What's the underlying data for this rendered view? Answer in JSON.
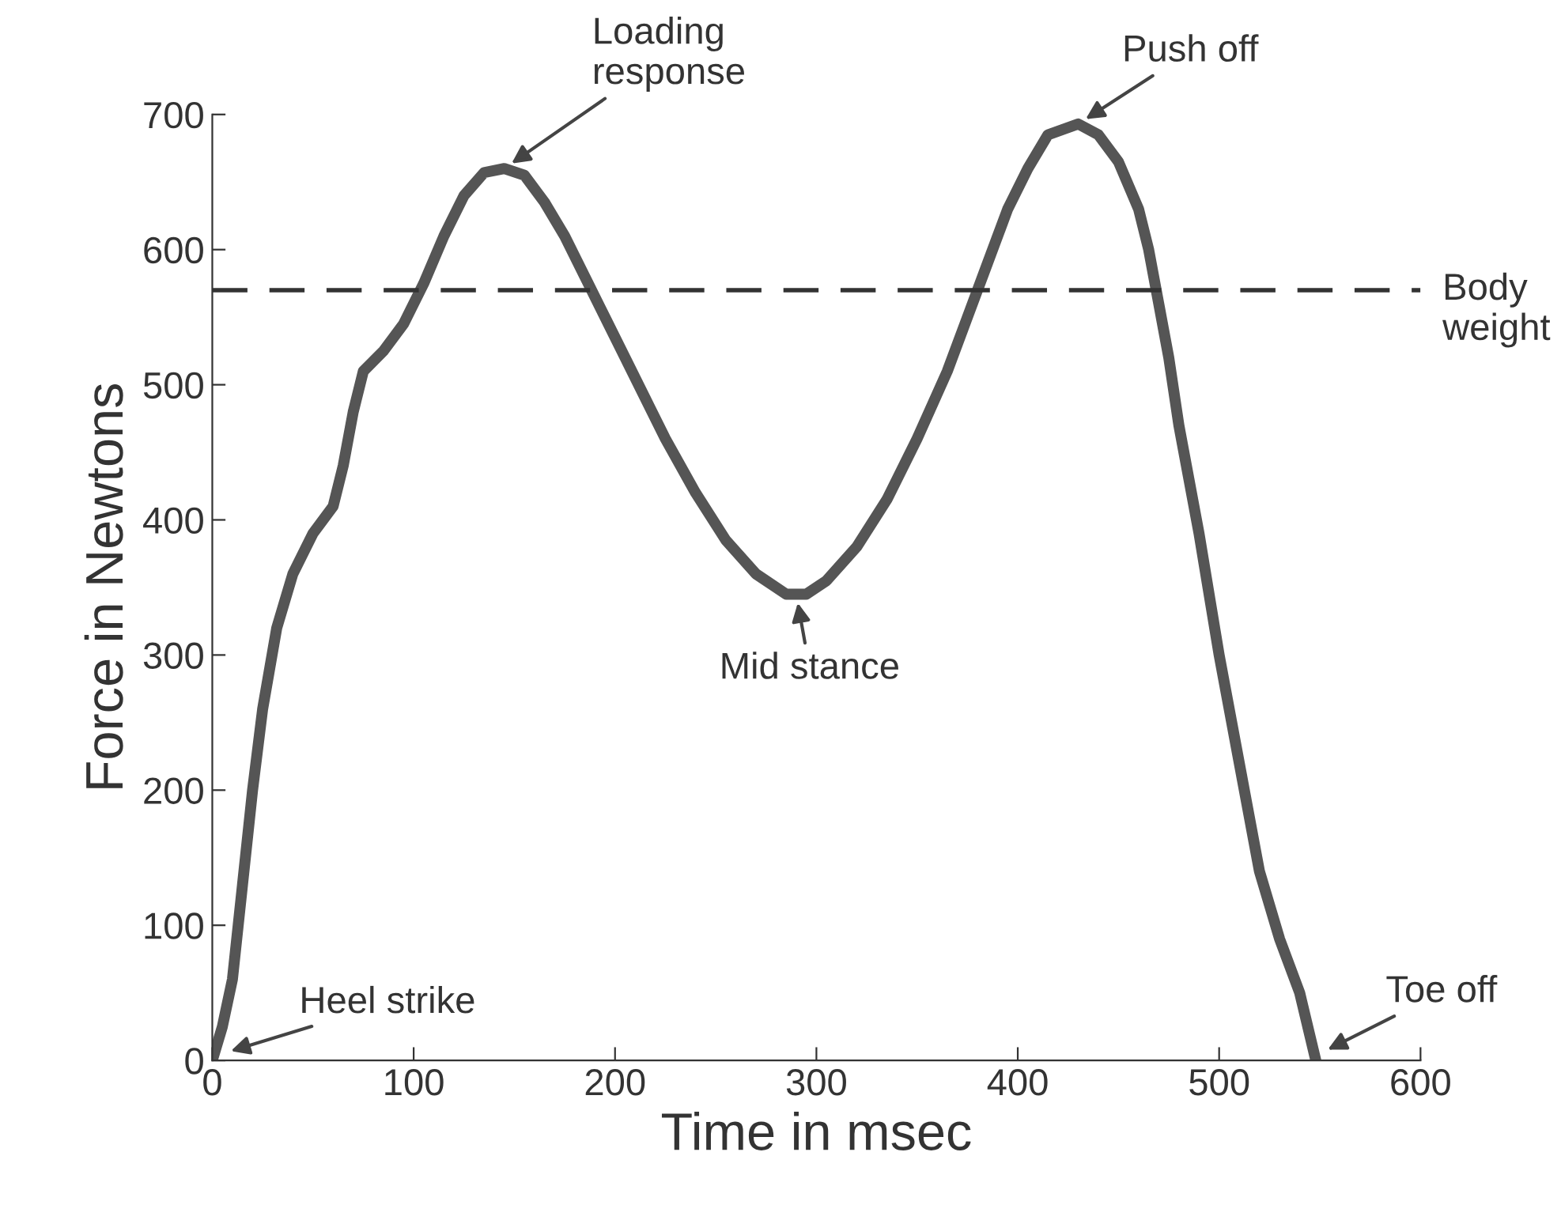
{
  "chart_data": {
    "type": "line",
    "xlabel": "Time in msec",
    "ylabel": "Force in Newtons",
    "xlim": [
      0,
      600
    ],
    "ylim": [
      0,
      700
    ],
    "xticks": [
      0,
      100,
      200,
      300,
      400,
      500,
      600
    ],
    "yticks": [
      0,
      100,
      200,
      300,
      400,
      500,
      600,
      700
    ],
    "grid": false,
    "line_style": "solid",
    "marker": "none",
    "series": [
      {
        "color": "#555555",
        "x": [
          0,
          5,
          10,
          15,
          20,
          25,
          32,
          40,
          50,
          60,
          65,
          70,
          75,
          85,
          95,
          105,
          115,
          125,
          135,
          145,
          155,
          165,
          175,
          185,
          195,
          205,
          215,
          225,
          240,
          255,
          270,
          285,
          295,
          305,
          320,
          335,
          350,
          365,
          375,
          385,
          395,
          405,
          415,
          430,
          440,
          450,
          460,
          465,
          470,
          475,
          480,
          490,
          500,
          510,
          520,
          530,
          540,
          548
        ],
        "values": [
          0,
          25,
          60,
          130,
          200,
          260,
          320,
          360,
          390,
          410,
          440,
          480,
          510,
          525,
          545,
          575,
          610,
          640,
          657,
          660,
          655,
          635,
          610,
          580,
          550,
          520,
          490,
          460,
          420,
          385,
          360,
          345,
          345,
          355,
          380,
          415,
          460,
          510,
          550,
          590,
          630,
          660,
          685,
          693,
          685,
          665,
          630,
          600,
          560,
          520,
          470,
          390,
          300,
          220,
          140,
          90,
          50,
          0
        ]
      }
    ],
    "ref_lines": [
      {
        "axis": "y",
        "value": 570,
        "label": "Body\nweight",
        "color": "#333333",
        "line_style": "dashed"
      }
    ],
    "annotations": [
      {
        "text": "Loading\nresponse",
        "x": 145,
        "y": 660
      },
      {
        "text": "Push off",
        "x": 430,
        "y": 693
      },
      {
        "text": "Mid stance",
        "x": 290,
        "y": 345
      },
      {
        "text": "Heel strike",
        "x": 5,
        "y": 5
      },
      {
        "text": "Toe off",
        "x": 550,
        "y": 5
      }
    ]
  }
}
